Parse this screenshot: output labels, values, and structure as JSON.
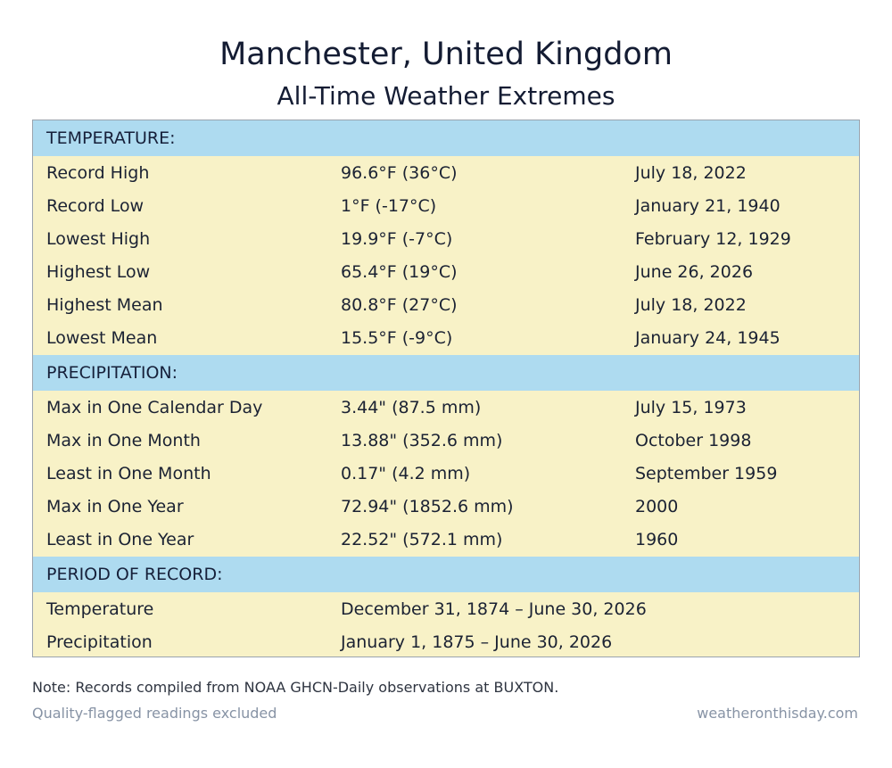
{
  "header": {
    "title": "Manchester,  United Kingdom",
    "subtitle": "All-Time Weather Extremes"
  },
  "sections": [
    {
      "heading": "TEMPERATURE:",
      "rows": [
        {
          "label": "Record High",
          "value": "96.6°F (36°C)",
          "date": "July 18, 2022"
        },
        {
          "label": "Record Low",
          "value": "1°F (-17°C)",
          "date": "January 21, 1940"
        },
        {
          "label": "Lowest High",
          "value": "19.9°F (-7°C)",
          "date": "February 12, 1929"
        },
        {
          "label": "Highest Low",
          "value": "65.4°F (19°C)",
          "date": "June 26, 2026"
        },
        {
          "label": "Highest Mean",
          "value": "80.8°F (27°C)",
          "date": "July 18, 2022"
        },
        {
          "label": "Lowest Mean",
          "value": "15.5°F (-9°C)",
          "date": "January 24, 1945"
        }
      ]
    },
    {
      "heading": "PRECIPITATION:",
      "rows": [
        {
          "label": "Max in One Calendar Day",
          "value": "3.44\" (87.5 mm)",
          "date": "July 15, 1973"
        },
        {
          "label": "Max in One Month",
          "value": "13.88\" (352.6 mm)",
          "date": "October 1998"
        },
        {
          "label": "Least in One Month",
          "value": "0.17\" (4.2 mm)",
          "date": "September 1959"
        },
        {
          "label": "Max in One Year",
          "value": "72.94\" (1852.6 mm)",
          "date": "2000"
        },
        {
          "label": "Least in One Year",
          "value": "22.52\" (572.1 mm)",
          "date": "1960"
        }
      ]
    },
    {
      "heading": "PERIOD OF RECORD:",
      "rows": [
        {
          "label": "Temperature",
          "value": "December 31, 1874 – June 30, 2026"
        },
        {
          "label": "Precipitation",
          "value": "January 1, 1875 – June 30, 2026"
        }
      ]
    }
  ],
  "footer": {
    "note": "Note: Records compiled from NOAA GHCN-Daily observations at BUXTON.",
    "qualifier": "Quality-flagged readings excluded",
    "source": "weatheronthisday.com"
  },
  "colors": {
    "section_header_bg": "#aedbf0",
    "row_bg": "#f8f2c7",
    "footer_text": "#8793a5"
  }
}
